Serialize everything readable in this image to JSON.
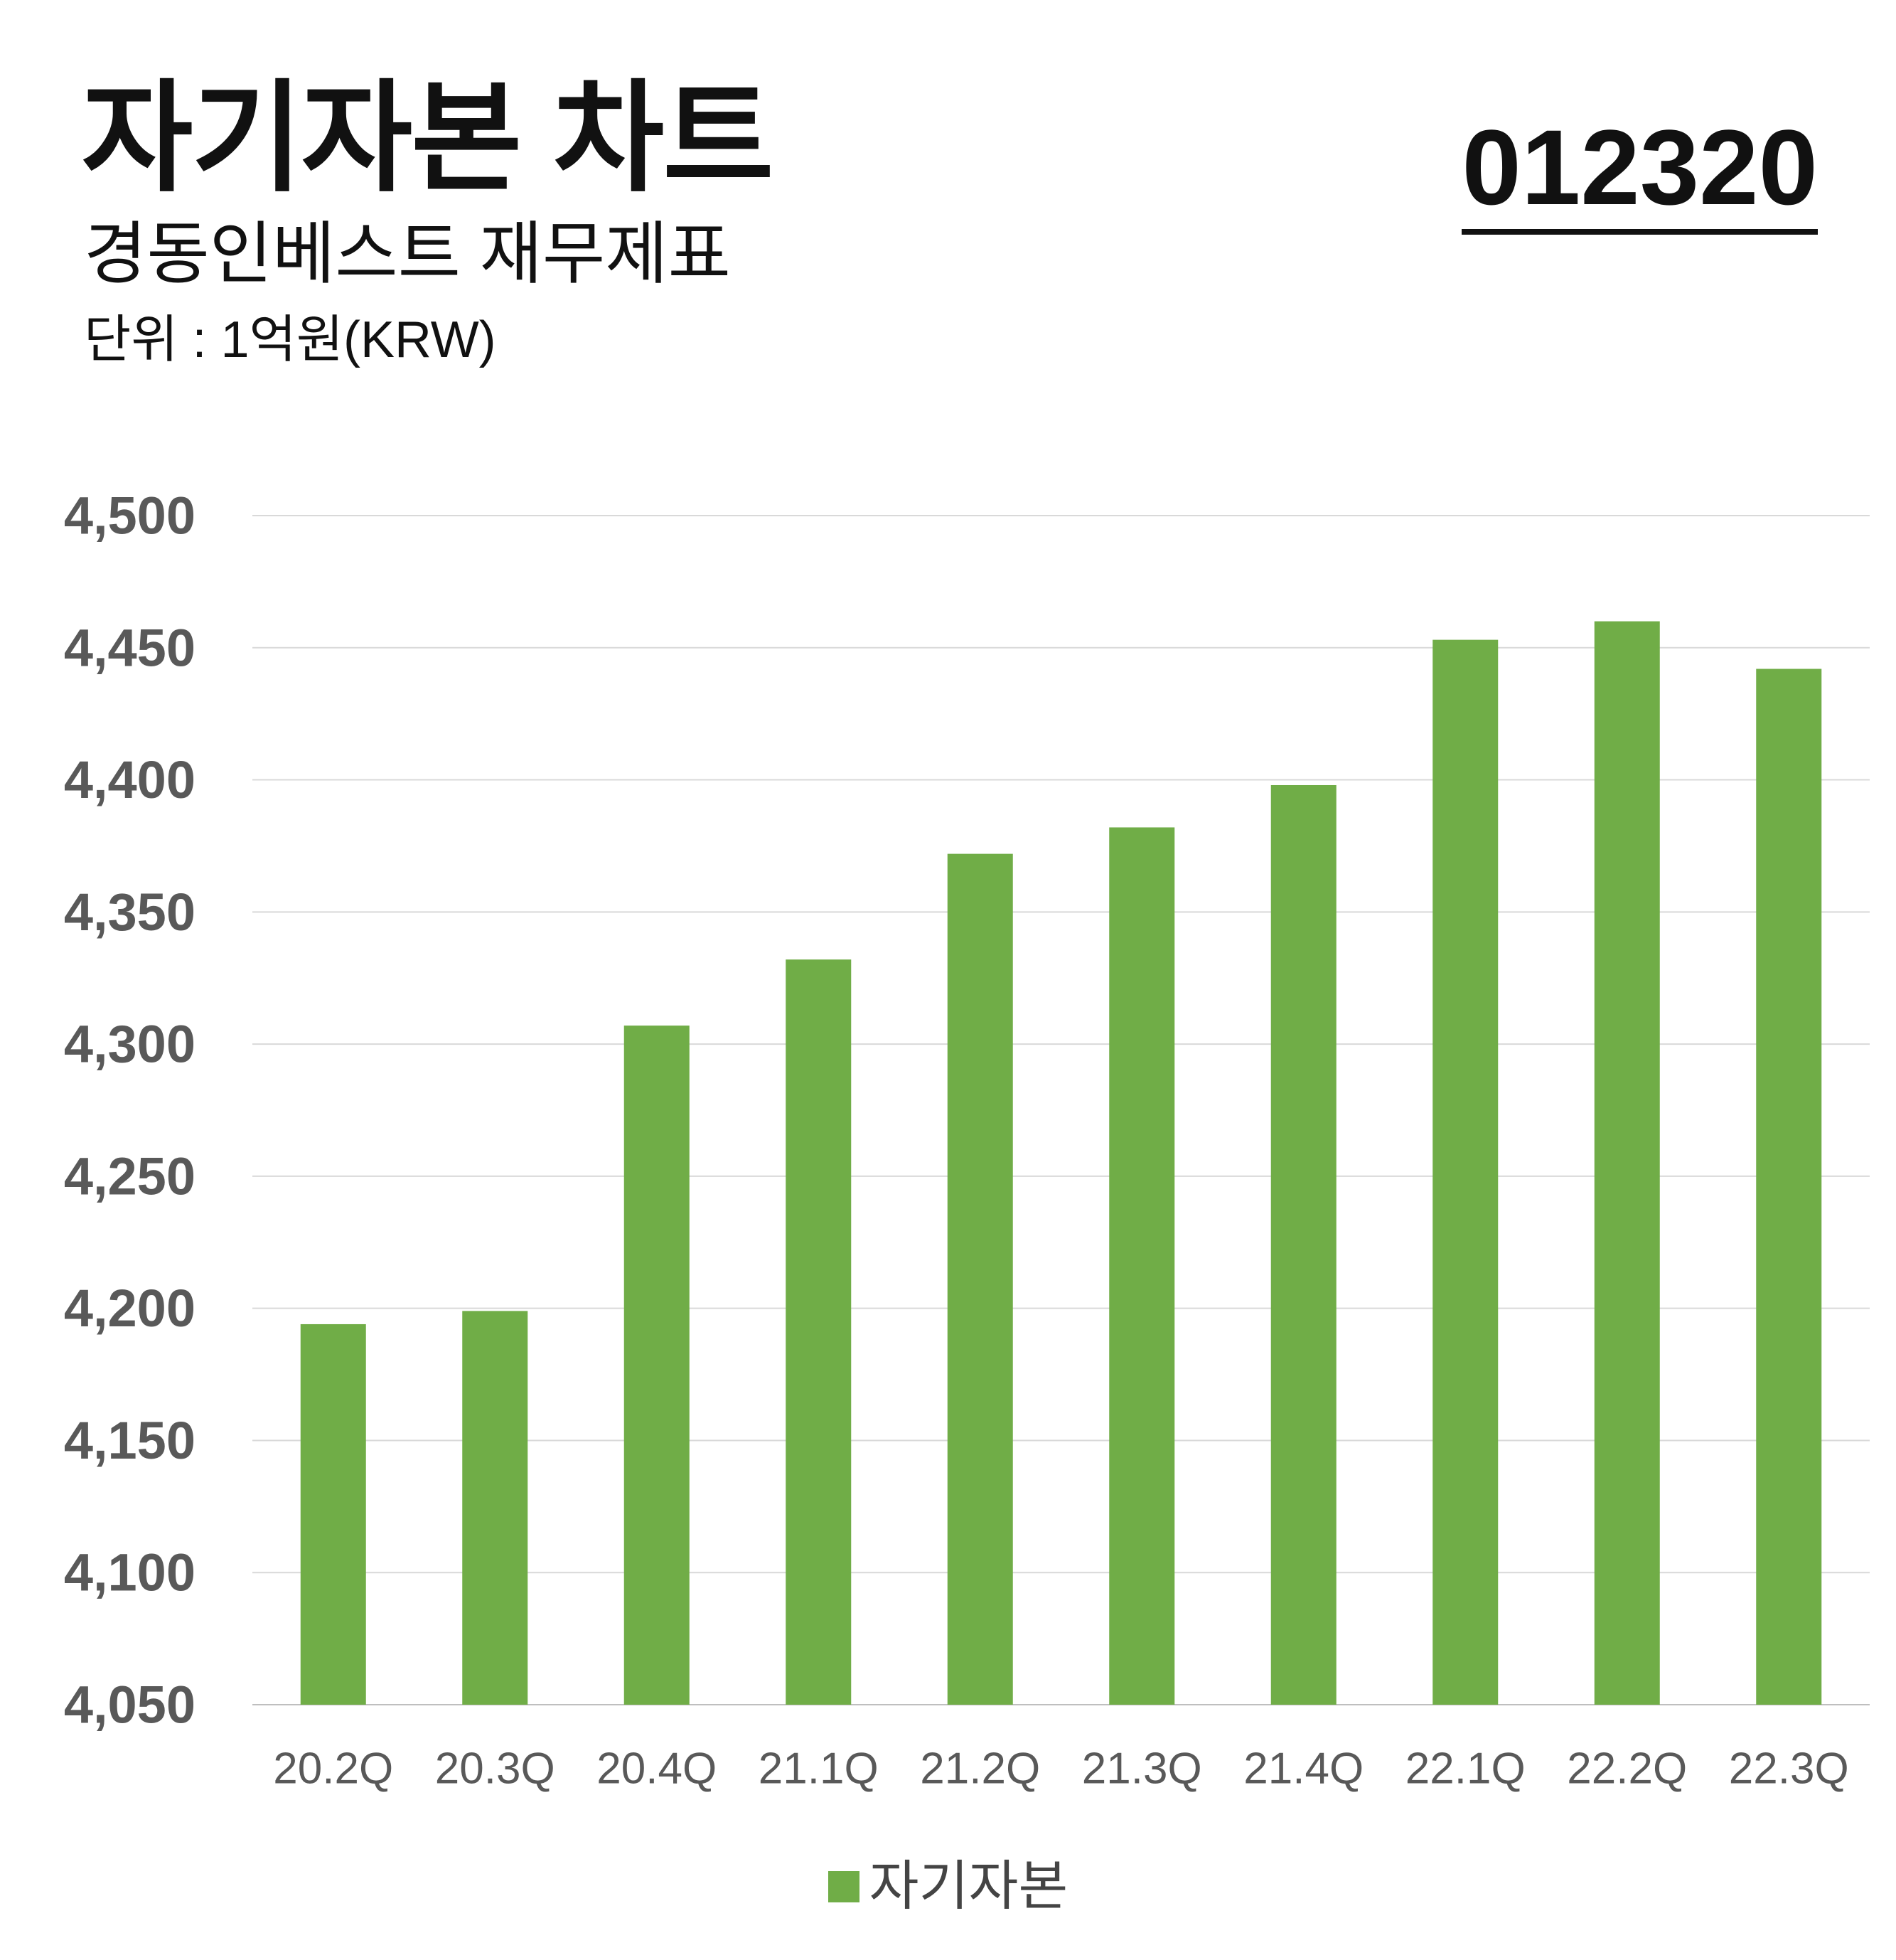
{
  "header": {
    "title": "자기자본 차트",
    "subtitle": "경동인베스트 재무제표",
    "unit": "단위 : 1억원(KRW)",
    "stock_code": "012320"
  },
  "legend": {
    "label": "자기자본"
  },
  "colors": {
    "bar": "#70AD47",
    "grid": "#D9D9D9",
    "tick_label": "#595959",
    "category_label": "#595959"
  },
  "chart_data": {
    "type": "bar",
    "title": "자기자본 차트",
    "xlabel": "",
    "ylabel": "",
    "categories": [
      "20.2Q",
      "20.3Q",
      "20.4Q",
      "21.1Q",
      "21.2Q",
      "21.3Q",
      "21.4Q",
      "22.1Q",
      "22.2Q",
      "22.3Q"
    ],
    "series": [
      {
        "name": "자기자본",
        "values": [
          4194,
          4199,
          4307,
          4332,
          4372,
          4382,
          4398,
          4453,
          4460,
          4442
        ]
      }
    ],
    "ylim": [
      4050,
      4500
    ],
    "yticks": [
      4050,
      4100,
      4150,
      4200,
      4250,
      4300,
      4350,
      4400,
      4450,
      4500
    ],
    "ytick_labels": [
      "4,050",
      "4,100",
      "4,150",
      "4,200",
      "4,250",
      "4,300",
      "4,350",
      "4,400",
      "4,450",
      "4,500"
    ],
    "grid": true,
    "legend_position": "bottom"
  }
}
